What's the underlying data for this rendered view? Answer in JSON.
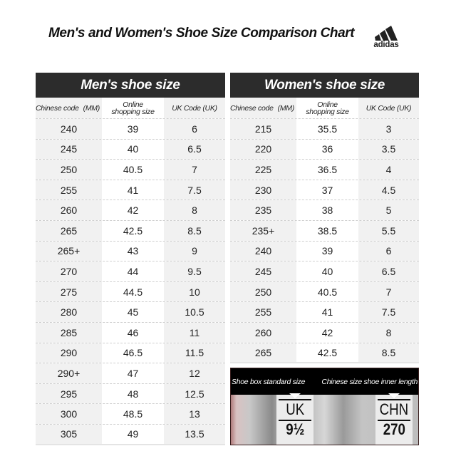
{
  "header": {
    "title": "Men's and Women's Shoe Size Comparison Chart",
    "logo_text": "adidas",
    "logo_icon": "adidas-three-stripes-icon"
  },
  "columns": {
    "chinese_code": "Chinese code",
    "chinese_code_unit": "(MM)",
    "online_line1": "Online",
    "online_line2": "shopping size",
    "uk_code": "UK Code (UK)"
  },
  "men": {
    "title": "Men's shoe size",
    "rows": [
      [
        "240",
        "39",
        "6"
      ],
      [
        "245",
        "40",
        "6.5"
      ],
      [
        "250",
        "40.5",
        "7"
      ],
      [
        "255",
        "41",
        "7.5"
      ],
      [
        "260",
        "42",
        "8"
      ],
      [
        "265",
        "42.5",
        "8.5"
      ],
      [
        "265+",
        "43",
        "9"
      ],
      [
        "270",
        "44",
        "9.5"
      ],
      [
        "275",
        "44.5",
        "10"
      ],
      [
        "280",
        "45",
        "10.5"
      ],
      [
        "285",
        "46",
        "11"
      ],
      [
        "290",
        "46.5",
        "11.5"
      ],
      [
        "290+",
        "47",
        "12"
      ],
      [
        "295",
        "48",
        "12.5"
      ],
      [
        "300",
        "48.5",
        "13"
      ],
      [
        "305",
        "49",
        "13.5"
      ]
    ]
  },
  "women": {
    "title": "Women's shoe size",
    "rows": [
      [
        "215",
        "35.5",
        "3"
      ],
      [
        "220",
        "36",
        "3.5"
      ],
      [
        "225",
        "36.5",
        "4"
      ],
      [
        "230",
        "37",
        "4.5"
      ],
      [
        "235",
        "38",
        "5"
      ],
      [
        "235+",
        "38.5",
        "5.5"
      ],
      [
        "240",
        "39",
        "6"
      ],
      [
        "245",
        "40",
        "6.5"
      ],
      [
        "250",
        "40.5",
        "7"
      ],
      [
        "255",
        "41",
        "7.5"
      ],
      [
        "260",
        "42",
        "8"
      ],
      [
        "265",
        "42.5",
        "8.5"
      ]
    ]
  },
  "photo": {
    "label_left": "Shoe box standard size",
    "label_right": "Chinese size shoe inner length",
    "tag_left_label": "UK",
    "tag_left_value": "9½",
    "tag_right_label": "CHN",
    "tag_right_value": "270"
  },
  "colors": {
    "header_bg": "#2c2c2c",
    "gray_column": "#f1f1f1",
    "white_column": "#ffffff"
  }
}
